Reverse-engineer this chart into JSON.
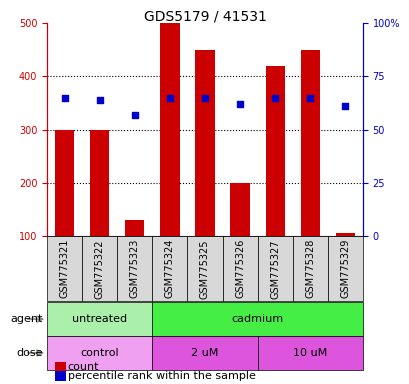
{
  "title": "GDS5179 / 41531",
  "samples": [
    "GSM775321",
    "GSM775322",
    "GSM775323",
    "GSM775324",
    "GSM775325",
    "GSM775326",
    "GSM775327",
    "GSM775328",
    "GSM775329"
  ],
  "bar_tops": [
    300,
    300,
    130,
    500,
    450,
    200,
    420,
    450,
    105
  ],
  "bar_base": 100,
  "bar_color": "#cc0000",
  "blue_values": [
    65,
    64,
    57,
    65,
    65,
    62,
    65,
    65,
    61
  ],
  "blue_color": "#0000cc",
  "left_ylim": [
    100,
    500
  ],
  "left_yticks": [
    100,
    200,
    300,
    400,
    500
  ],
  "right_ylim": [
    0,
    100
  ],
  "right_yticks": [
    0,
    25,
    50,
    75,
    100
  ],
  "right_yticklabels": [
    "0",
    "25",
    "50",
    "75",
    "100%"
  ],
  "agent_groups": [
    {
      "label": "untreated",
      "start": 0,
      "end": 3,
      "color": "#aaf0aa"
    },
    {
      "label": "cadmium",
      "start": 3,
      "end": 9,
      "color": "#44ee44"
    }
  ],
  "dose_groups": [
    {
      "label": "control",
      "start": 0,
      "end": 3,
      "color": "#f0a0f0"
    },
    {
      "label": "2 uM",
      "start": 3,
      "end": 6,
      "color": "#dd55dd"
    },
    {
      "label": "10 uM",
      "start": 6,
      "end": 9,
      "color": "#dd55dd"
    }
  ],
  "legend_count_label": "count",
  "legend_pct_label": "percentile rank within the sample",
  "agent_label": "agent",
  "dose_label": "dose",
  "bar_color_red": "#cc0000",
  "bar_color_blue": "#0000cc",
  "plot_bg": "#ffffff",
  "label_bg": "#cccccc",
  "grid_color": "#000000",
  "left_tick_color": "#cc0000",
  "right_tick_color": "#0000cc",
  "title_fontsize": 10,
  "tick_fontsize": 7,
  "label_fontsize": 8,
  "bar_width": 0.55
}
